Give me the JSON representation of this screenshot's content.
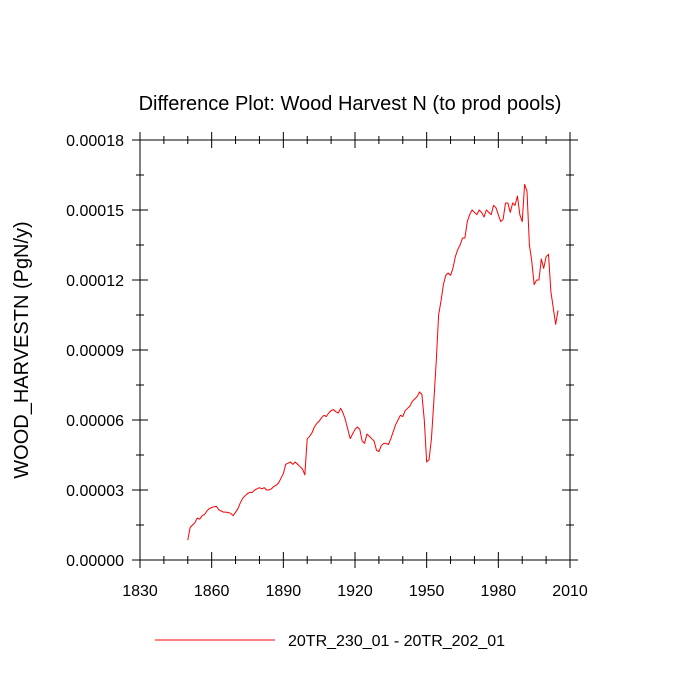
{
  "chart_data": {
    "type": "line",
    "title": "Difference Plot: Wood Harvest N (to prod pools)",
    "xlabel": "",
    "ylabel": "WOOD_HARVESTN  (PgN/y)",
    "xlim": [
      1830,
      2010
    ],
    "ylim": [
      0.0,
      0.00018
    ],
    "x_ticks": [
      1830,
      1860,
      1890,
      1920,
      1950,
      1980,
      2010
    ],
    "x_tick_labels": [
      "1830",
      "1860",
      "1890",
      "1920",
      "1950",
      "1980",
      "2010"
    ],
    "y_ticks": [
      0.0,
      3e-05,
      6e-05,
      9e-05,
      0.00012,
      0.00015,
      0.00018
    ],
    "y_tick_labels": [
      "0.00000",
      "0.00003",
      "0.00006",
      "0.00009",
      "0.00012",
      "0.00015",
      "0.00018"
    ],
    "grid": false,
    "legend_position": "bottom",
    "series": [
      {
        "name": "20TR_230_01 - 20TR_202_01",
        "color": "#ff0000",
        "x": [
          1850,
          1851,
          1852,
          1853,
          1854,
          1855,
          1856,
          1857,
          1858,
          1859,
          1860,
          1861,
          1862,
          1863,
          1864,
          1865,
          1866,
          1867,
          1868,
          1869,
          1870,
          1871,
          1872,
          1873,
          1874,
          1875,
          1876,
          1877,
          1878,
          1879,
          1880,
          1881,
          1882,
          1883,
          1884,
          1885,
          1886,
          1887,
          1888,
          1889,
          1890,
          1891,
          1892,
          1893,
          1894,
          1895,
          1896,
          1897,
          1898,
          1899,
          1900,
          1901,
          1902,
          1903,
          1904,
          1905,
          1906,
          1907,
          1908,
          1909,
          1910,
          1911,
          1912,
          1913,
          1914,
          1915,
          1916,
          1917,
          1918,
          1919,
          1920,
          1921,
          1922,
          1923,
          1924,
          1925,
          1926,
          1927,
          1928,
          1929,
          1930,
          1931,
          1932,
          1933,
          1934,
          1935,
          1936,
          1937,
          1938,
          1939,
          1940,
          1941,
          1942,
          1943,
          1944,
          1945,
          1946,
          1947,
          1948,
          1949,
          1950,
          1951,
          1952,
          1953,
          1954,
          1955,
          1956,
          1957,
          1958,
          1959,
          1960,
          1961,
          1962,
          1963,
          1964,
          1965,
          1966,
          1967,
          1968,
          1969,
          1970,
          1971,
          1972,
          1973,
          1974,
          1975,
          1976,
          1977,
          1978,
          1979,
          1980,
          1981,
          1982,
          1983,
          1984,
          1985,
          1986,
          1987,
          1988,
          1989,
          1990,
          1991,
          1992,
          1993,
          1994,
          1995,
          1996,
          1997,
          1998,
          1999,
          2000,
          2001,
          2002,
          2003,
          2004,
          2005
        ],
        "values": [
          8.5e-06,
          1.4e-05,
          1.5e-05,
          1.6e-05,
          1.8e-05,
          1.75e-05,
          1.9e-05,
          1.95e-05,
          2.1e-05,
          2.2e-05,
          2.25e-05,
          2.28e-05,
          2.3e-05,
          2.15e-05,
          2.1e-05,
          2.05e-05,
          2.05e-05,
          2.03e-05,
          2e-05,
          1.9e-05,
          2.05e-05,
          2.2e-05,
          2.45e-05,
          2.65e-05,
          2.75e-05,
          2.85e-05,
          2.9e-05,
          2.9e-05,
          3e-05,
          3.05e-05,
          3.1e-05,
          3.05e-05,
          3.1e-05,
          3e-05,
          3e-05,
          3.05e-05,
          3.15e-05,
          3.2e-05,
          3.3e-05,
          3.5e-05,
          3.7e-05,
          4.1e-05,
          4.15e-05,
          4.2e-05,
          4.1e-05,
          4.2e-05,
          4.1e-05,
          4e-05,
          3.9e-05,
          3.65e-05,
          5.2e-05,
          5.3e-05,
          5.45e-05,
          5.7e-05,
          5.85e-05,
          5.95e-05,
          6.1e-05,
          6.2e-05,
          6.15e-05,
          6.3e-05,
          6.4e-05,
          6.45e-05,
          6.35e-05,
          6.3e-05,
          6.5e-05,
          6.3e-05,
          6e-05,
          5.6e-05,
          5.2e-05,
          5.4e-05,
          5.6e-05,
          5.7e-05,
          5.6e-05,
          5.1e-05,
          5e-05,
          5.4e-05,
          5.3e-05,
          5.2e-05,
          5.1e-05,
          4.7e-05,
          4.65e-05,
          4.9e-05,
          5e-05,
          5e-05,
          4.95e-05,
          5.2e-05,
          5.5e-05,
          5.8e-05,
          6e-05,
          6.2e-05,
          6.15e-05,
          6.4e-05,
          6.5e-05,
          6.6e-05,
          6.8e-05,
          6.9e-05,
          7e-05,
          7.2e-05,
          7.1e-05,
          6e-05,
          4.2e-05,
          4.3e-05,
          5.2e-05,
          6.8e-05,
          8.5e-05,
          0.000105,
          0.000111,
          0.000118,
          0.000122,
          0.000123,
          0.000122,
          0.000125,
          0.00013,
          0.000133,
          0.000135,
          0.000138,
          0.000138,
          0.000145,
          0.000148,
          0.00015,
          0.000149,
          0.000148,
          0.00015,
          0.000149,
          0.000147,
          0.00015,
          0.000149,
          0.000148,
          0.000152,
          0.000151,
          0.000148,
          0.000145,
          0.000146,
          0.000153,
          0.000153,
          0.000149,
          0.000153,
          0.000152,
          0.000156,
          0.000148,
          0.000145,
          0.000161,
          0.000158,
          0.000135,
          0.000128,
          0.000118,
          0.00012,
          0.00012,
          0.000129,
          0.000125,
          0.00013,
          0.000131,
          0.000115,
          0.000108,
          0.000101,
          0.000107
        ]
      }
    ]
  }
}
